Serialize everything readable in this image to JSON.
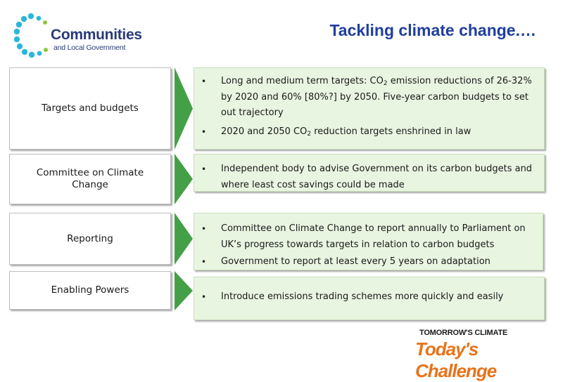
{
  "logo": {
    "main": "Communities",
    "sub": "and Local Government"
  },
  "title": "Tackling climate change.…",
  "sections": [
    {
      "label": "Targets and budgets",
      "bullets": [
        {
          "pre": "Long and medium term targets: CO",
          "sub": "2",
          "post": " emission reductions of 26-32% by 2020 and 60% [80%?] by 2050. Five-year carbon budgets to set out trajectory"
        },
        {
          "pre": "2020 and 2050 CO",
          "sub": "2",
          "post": " reduction targets enshrined in law"
        }
      ]
    },
    {
      "label": "Committee on Climate\nChange",
      "bullets": [
        {
          "pre": "Independent body to advise Government on its carbon budgets and where least cost savings could be made",
          "sub": "",
          "post": ""
        }
      ]
    },
    {
      "label": "Reporting",
      "bullets": [
        {
          "pre": "Committee on Climate Change to report annually to Parliament on UK’s progress towards targets in relation to carbon budgets",
          "sub": "",
          "post": ""
        },
        {
          "pre": "Government to report at least every 5 years on adaptation",
          "sub": "",
          "post": ""
        }
      ]
    },
    {
      "label": "Enabling Powers",
      "bullets": [
        {
          "pre": "Introduce emissions trading schemes more quickly and easily",
          "sub": "",
          "post": ""
        }
      ]
    }
  ],
  "tagline": {
    "top": "TOMORROW'S CLIMATE",
    "bottom": "Today's Challenge"
  },
  "colors": {
    "title": "#1f3f9f",
    "chevron": "#43a047",
    "panel": "#e8f5e1",
    "logo_dots": "#2bb8d8",
    "tagline_orange": "#e8731a"
  },
  "icons": {
    "logo": "dotted-ring-logo-icon",
    "chevron": "chevron-right-icon",
    "bullet": "bullet-icon"
  }
}
